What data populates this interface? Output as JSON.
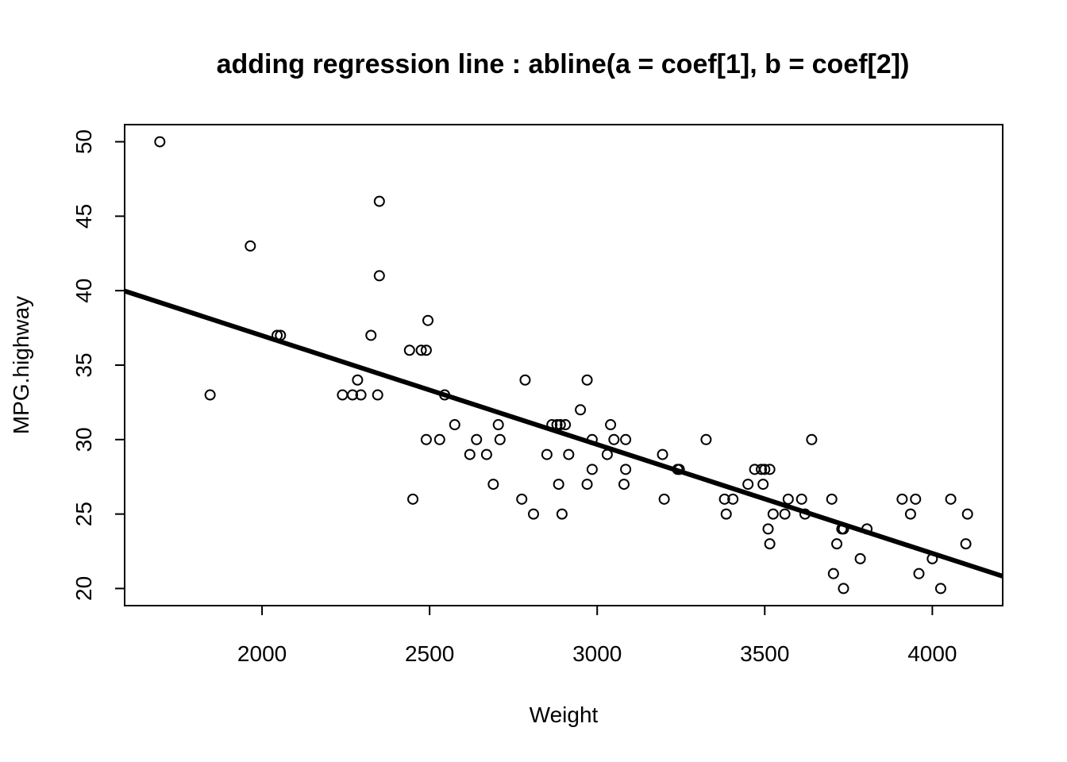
{
  "chart_data": {
    "type": "scatter",
    "title": "adding regression line : abline(a = coef[1], b = coef[2])",
    "xlabel": "Weight",
    "ylabel": "MPG.highway",
    "xlim": [
      1590,
      4210
    ],
    "ylim": [
      18.85,
      51.15
    ],
    "x_ticks": [
      2000,
      2500,
      3000,
      3500,
      4000
    ],
    "y_ticks": [
      20,
      25,
      30,
      35,
      40,
      45,
      50
    ],
    "points": [
      [
        1695,
        50
      ],
      [
        1845,
        33
      ],
      [
        1965,
        43
      ],
      [
        2045,
        37
      ],
      [
        2055,
        37
      ],
      [
        2240,
        33
      ],
      [
        2270,
        33
      ],
      [
        2285,
        34
      ],
      [
        2295,
        33
      ],
      [
        2325,
        37
      ],
      [
        2345,
        33
      ],
      [
        2350,
        46
      ],
      [
        2350,
        41
      ],
      [
        2440,
        36
      ],
      [
        2450,
        26
      ],
      [
        2475,
        36
      ],
      [
        2490,
        30
      ],
      [
        2490,
        36
      ],
      [
        2495,
        38
      ],
      [
        2530,
        30
      ],
      [
        2545,
        33
      ],
      [
        2575,
        31
      ],
      [
        2620,
        29
      ],
      [
        2640,
        30
      ],
      [
        2670,
        29
      ],
      [
        2690,
        27
      ],
      [
        2705,
        31
      ],
      [
        2710,
        30
      ],
      [
        2775,
        26
      ],
      [
        2785,
        34
      ],
      [
        2810,
        25
      ],
      [
        2850,
        29
      ],
      [
        2865,
        31
      ],
      [
        2880,
        31
      ],
      [
        2885,
        27
      ],
      [
        2890,
        31
      ],
      [
        2895,
        25
      ],
      [
        2905,
        31
      ],
      [
        2915,
        29
      ],
      [
        2950,
        32
      ],
      [
        2970,
        27
      ],
      [
        2970,
        34
      ],
      [
        2985,
        30
      ],
      [
        2985,
        28
      ],
      [
        3030,
        29
      ],
      [
        3040,
        31
      ],
      [
        3050,
        30
      ],
      [
        3080,
        27
      ],
      [
        3085,
        30
      ],
      [
        3085,
        28
      ],
      [
        3195,
        29
      ],
      [
        3200,
        26
      ],
      [
        3240,
        28
      ],
      [
        3245,
        28
      ],
      [
        3325,
        30
      ],
      [
        3380,
        26
      ],
      [
        3385,
        25
      ],
      [
        3405,
        26
      ],
      [
        3450,
        27
      ],
      [
        3470,
        28
      ],
      [
        3490,
        28
      ],
      [
        3495,
        27
      ],
      [
        3500,
        28
      ],
      [
        3510,
        24
      ],
      [
        3515,
        28
      ],
      [
        3515,
        23
      ],
      [
        3525,
        25
      ],
      [
        3560,
        25
      ],
      [
        3570,
        26
      ],
      [
        3610,
        26
      ],
      [
        3620,
        25
      ],
      [
        3640,
        30
      ],
      [
        3700,
        26
      ],
      [
        3705,
        21
      ],
      [
        3715,
        23
      ],
      [
        3730,
        24
      ],
      [
        3735,
        20
      ],
      [
        3735,
        24
      ],
      [
        3785,
        22
      ],
      [
        3805,
        24
      ],
      [
        3910,
        26
      ],
      [
        3935,
        25
      ],
      [
        3950,
        26
      ],
      [
        3960,
        21
      ],
      [
        4000,
        22
      ],
      [
        4025,
        20
      ],
      [
        4055,
        26
      ],
      [
        4100,
        23
      ],
      [
        4105,
        25
      ]
    ],
    "regression": {
      "intercept": 51.6,
      "slope": -0.00731
    },
    "grid": false,
    "legend": "none"
  }
}
